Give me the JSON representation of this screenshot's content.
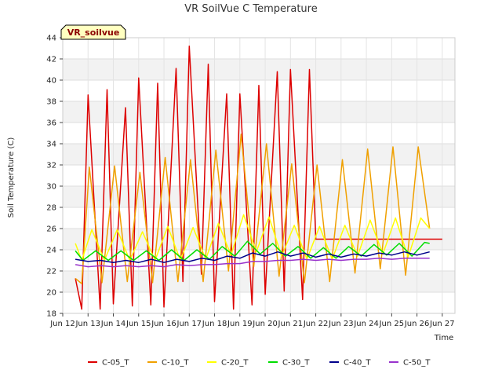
{
  "chart_data": {
    "type": "line",
    "title": "VR SoilVue C Temperature",
    "xlabel": "Time",
    "ylabel": "Soil Temperature (C)",
    "station_label": "VR_soilvue",
    "xlim": [
      11.5,
      27
    ],
    "ylim": [
      18,
      44
    ],
    "x_ticks": [
      {
        "v": 11.5,
        "label": "Jun 12"
      },
      {
        "v": 12.5,
        "label": "Jun 13"
      },
      {
        "v": 13.5,
        "label": "Jun 14"
      },
      {
        "v": 14.5,
        "label": "Jun 15"
      },
      {
        "v": 15.5,
        "label": "Jun 16"
      },
      {
        "v": 16.5,
        "label": "Jun 17"
      },
      {
        "v": 17.5,
        "label": "Jun 18"
      },
      {
        "v": 18.5,
        "label": "Jun 19"
      },
      {
        "v": 19.5,
        "label": "Jun 20"
      },
      {
        "v": 20.5,
        "label": "Jun 21"
      },
      {
        "v": 21.5,
        "label": "Jun 22"
      },
      {
        "v": 22.5,
        "label": "Jun 23"
      },
      {
        "v": 23.5,
        "label": "Jun 24"
      },
      {
        "v": 24.5,
        "label": "Jun 25"
      },
      {
        "v": 25.5,
        "label": "Jun 26"
      },
      {
        "v": 26.5,
        "label": "Jun 27"
      }
    ],
    "y_ticks": [
      18,
      20,
      22,
      24,
      26,
      28,
      30,
      32,
      34,
      36,
      38,
      40,
      42,
      44
    ],
    "grid": true,
    "legend_position": "bottom",
    "series": [
      {
        "name": "C-05_T",
        "color": "#dd0000",
        "x": [
          12.0,
          12.25,
          12.5,
          12.98,
          13.25,
          13.5,
          13.98,
          14.25,
          14.5,
          14.98,
          15.25,
          15.5,
          15.98,
          16.25,
          16.5,
          16.98,
          17.25,
          17.5,
          17.98,
          18.25,
          18.5,
          18.98,
          19.25,
          19.5,
          19.98,
          20.25,
          20.5,
          20.98,
          21.25,
          21.5,
          21.98,
          22.25,
          22.5,
          22.98,
          23.25,
          23.5,
          23.98,
          24.25,
          24.5,
          24.98,
          25.25,
          25.5,
          25.98,
          26.25,
          26.5
        ],
        "y": [
          21.3,
          18.4,
          38.6,
          18.4,
          39.1,
          18.9,
          37.4,
          18.7,
          40.2,
          18.8,
          39.7,
          18.6,
          41.1,
          21.0,
          43.2,
          21.7,
          41.5,
          19.1,
          38.7,
          18.4,
          38.7,
          18.8,
          39.5,
          19.8,
          40.8,
          20.1,
          41.0,
          19.3,
          41.0,
          25.0,
          25.0,
          25.0,
          25.0,
          25.0,
          25.0,
          25.0,
          25.0,
          25.0,
          25.0,
          25.0,
          25.0,
          25.0,
          25.0,
          25.0,
          25.0
        ]
      },
      {
        "name": "C-10_T",
        "color": "#f0a000",
        "x": [
          12.0,
          12.25,
          12.55,
          13.05,
          13.55,
          14.05,
          14.55,
          15.05,
          15.55,
          16.05,
          16.55,
          17.05,
          17.55,
          18.05,
          18.55,
          19.05,
          19.55,
          20.05,
          20.55,
          21.05,
          21.55,
          22.05,
          22.55,
          23.05,
          23.55,
          24.05,
          24.55,
          25.05,
          25.55,
          26.0
        ],
        "y": [
          21.3,
          20.8,
          31.8,
          20.9,
          31.9,
          21.0,
          31.3,
          20.9,
          32.7,
          21.0,
          32.5,
          21.0,
          33.4,
          22.0,
          34.9,
          22.4,
          34.0,
          21.5,
          32.1,
          20.9,
          32.0,
          21.0,
          32.5,
          21.8,
          33.5,
          22.2,
          33.7,
          21.6,
          33.7,
          26.0
        ]
      },
      {
        "name": "C-20_T",
        "color": "#ffff00",
        "x": [
          12.0,
          12.25,
          12.65,
          13.15,
          13.65,
          14.15,
          14.65,
          15.15,
          15.65,
          16.15,
          16.65,
          17.15,
          17.65,
          18.15,
          18.65,
          19.15,
          19.65,
          20.15,
          20.65,
          21.15,
          21.65,
          22.15,
          22.65,
          23.15,
          23.65,
          24.15,
          24.65,
          25.15,
          25.65,
          26.0
        ],
        "y": [
          24.6,
          23.0,
          25.9,
          23.0,
          25.9,
          23.0,
          25.7,
          23.0,
          26.2,
          23.0,
          26.1,
          23.1,
          26.5,
          23.5,
          27.3,
          23.8,
          27.1,
          23.4,
          26.3,
          23.1,
          26.2,
          23.1,
          26.3,
          23.4,
          26.8,
          23.6,
          27.0,
          23.3,
          27.0,
          26.0
        ]
      },
      {
        "name": "C-30_T",
        "color": "#00dd00",
        "x": [
          12.0,
          12.3,
          12.8,
          13.3,
          13.8,
          14.3,
          14.8,
          15.3,
          15.8,
          16.3,
          16.8,
          17.3,
          17.8,
          18.3,
          18.8,
          19.3,
          19.8,
          20.3,
          20.8,
          21.3,
          21.8,
          22.3,
          22.8,
          23.3,
          23.8,
          24.3,
          24.8,
          25.3,
          25.8,
          26.0
        ],
        "y": [
          23.9,
          23.0,
          23.9,
          23.0,
          23.9,
          23.0,
          23.9,
          23.0,
          24.0,
          23.0,
          24.0,
          23.1,
          24.3,
          23.4,
          24.8,
          23.6,
          24.6,
          23.4,
          24.3,
          23.2,
          24.2,
          23.2,
          24.3,
          23.4,
          24.5,
          23.5,
          24.6,
          23.4,
          24.7,
          24.6
        ]
      },
      {
        "name": "C-40_T",
        "color": "#00008b",
        "x": [
          12.0,
          12.5,
          13.0,
          13.5,
          14.0,
          14.5,
          15.0,
          15.5,
          16.0,
          16.5,
          17.0,
          17.5,
          18.0,
          18.5,
          19.0,
          19.5,
          20.0,
          20.5,
          21.0,
          21.5,
          22.0,
          22.5,
          23.0,
          23.5,
          24.0,
          24.5,
          25.0,
          25.5,
          26.0
        ],
        "y": [
          23.1,
          22.9,
          23.0,
          22.8,
          23.0,
          22.8,
          23.1,
          22.8,
          23.1,
          22.9,
          23.2,
          23.0,
          23.4,
          23.2,
          23.7,
          23.4,
          23.8,
          23.4,
          23.7,
          23.3,
          23.6,
          23.3,
          23.6,
          23.4,
          23.7,
          23.5,
          23.8,
          23.5,
          23.8
        ]
      },
      {
        "name": "C-50_T",
        "color": "#9933cc",
        "x": [
          12.0,
          12.5,
          13.0,
          13.5,
          14.0,
          14.5,
          15.0,
          15.5,
          16.0,
          16.5,
          17.0,
          17.5,
          18.0,
          18.5,
          19.0,
          19.5,
          20.0,
          20.5,
          21.0,
          21.5,
          22.0,
          22.5,
          23.0,
          23.5,
          24.0,
          24.5,
          25.0,
          25.5,
          26.0
        ],
        "y": [
          22.6,
          22.4,
          22.5,
          22.4,
          22.5,
          22.4,
          22.5,
          22.4,
          22.6,
          22.5,
          22.6,
          22.6,
          22.7,
          22.7,
          22.9,
          22.9,
          23.0,
          23.0,
          23.1,
          23.0,
          23.1,
          23.0,
          23.1,
          23.1,
          23.2,
          23.1,
          23.2,
          23.2,
          23.2
        ]
      }
    ]
  }
}
